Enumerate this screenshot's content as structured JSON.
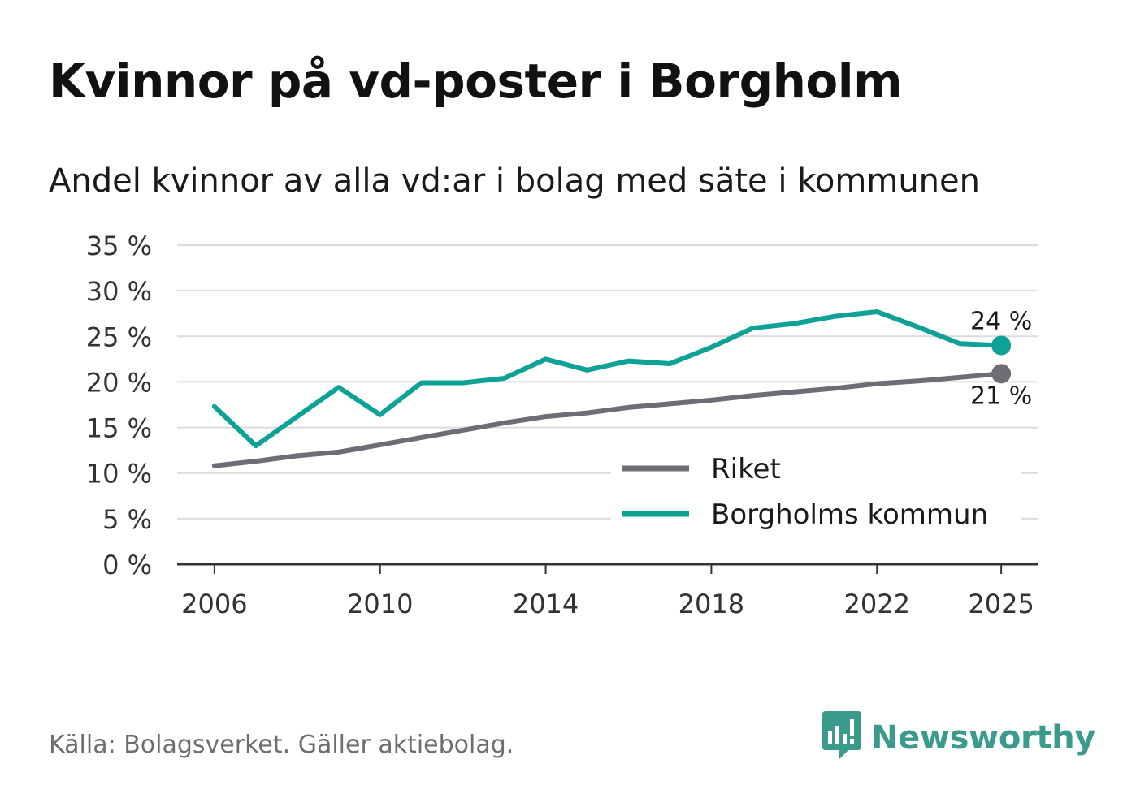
{
  "title": "Kvinnor på vd-poster i Borgholm",
  "subtitle": "Andel kvinnor av alla vd:ar i bolag med säte i kommunen",
  "source": "Källa: Bolagsverket. Gäller aktiebolag.",
  "brand": {
    "name": "Newsworthy",
    "icon": "newsworthy-logo-icon",
    "color": "#3a9a8c"
  },
  "chart_data": {
    "type": "line",
    "title": "Kvinnor på vd-poster i Borgholm",
    "subtitle": "Andel kvinnor av alla vd:ar i bolag med säte i kommunen",
    "xlabel": "",
    "ylabel": "",
    "x": [
      2006,
      2007,
      2008,
      2009,
      2010,
      2011,
      2012,
      2013,
      2014,
      2015,
      2016,
      2017,
      2018,
      2019,
      2020,
      2021,
      2022,
      2023,
      2024,
      2025
    ],
    "xticks": [
      "2006",
      "2010",
      "2014",
      "2018",
      "2022",
      "2025"
    ],
    "yticks": [
      "0 %",
      "5 %",
      "10 %",
      "15 %",
      "20 %",
      "25 %",
      "30 %",
      "35 %"
    ],
    "ylim": [
      0,
      35
    ],
    "xlim": [
      2005.1,
      2025.9
    ],
    "grid": true,
    "legend_position": "bottom-right",
    "series": [
      {
        "name": "Riket",
        "color": "#6e6d75",
        "values": [
          10.8,
          11.3,
          11.9,
          12.3,
          13.1,
          13.9,
          14.7,
          15.5,
          16.2,
          16.6,
          17.2,
          17.6,
          18.0,
          18.5,
          18.9,
          19.3,
          19.8,
          20.1,
          20.5,
          20.9
        ],
        "end_label": "21 %"
      },
      {
        "name": "Borgholms kommun",
        "color": "#0ea196",
        "values": [
          17.3,
          13.0,
          16.2,
          19.4,
          16.4,
          19.9,
          19.9,
          20.4,
          22.5,
          21.3,
          22.3,
          22.0,
          23.8,
          25.9,
          26.4,
          27.2,
          27.7,
          26.0,
          24.2,
          24.0
        ],
        "end_label": "24 %"
      }
    ]
  }
}
